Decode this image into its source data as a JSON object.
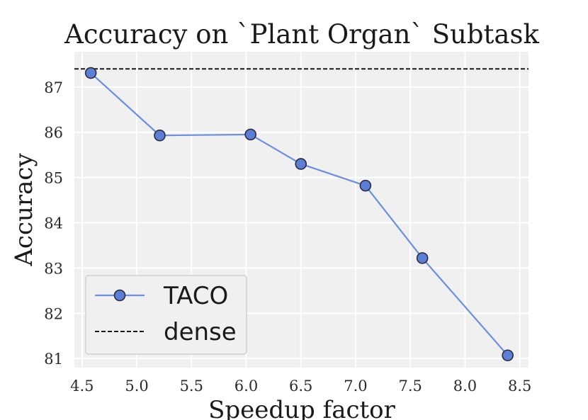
{
  "chart_data": {
    "type": "line",
    "title": "Accuracy on `Plant Organ` Subtask",
    "xlabel": "Speedup factor",
    "ylabel": "Accuracy",
    "xlim": [
      4.43,
      8.58
    ],
    "ylim": [
      80.8,
      87.78
    ],
    "xticks": [
      4.5,
      5.0,
      5.5,
      6.0,
      6.5,
      7.0,
      7.5,
      8.0,
      8.5
    ],
    "xtick_labels": [
      "4.5",
      "5.0",
      "5.5",
      "6.0",
      "6.5",
      "7.0",
      "7.5",
      "8.0",
      "8.5"
    ],
    "yticks": [
      81,
      82,
      83,
      84,
      85,
      86,
      87
    ],
    "ytick_labels": [
      "81",
      "82",
      "83",
      "84",
      "85",
      "86",
      "87"
    ],
    "grid": true,
    "legend_position": "lower-left",
    "series": [
      {
        "name": "TACO",
        "color": "#6a8ee0",
        "marker_color": "#5b7fd9",
        "x": [
          4.58,
          5.21,
          6.04,
          6.5,
          7.09,
          7.61,
          8.39
        ],
        "y": [
          87.31,
          85.93,
          85.95,
          85.3,
          84.82,
          83.22,
          81.07
        ]
      }
    ],
    "reference_lines": [
      {
        "name": "dense",
        "y": 87.4,
        "color": "#1a1a1a",
        "style": "dashed"
      }
    ]
  }
}
